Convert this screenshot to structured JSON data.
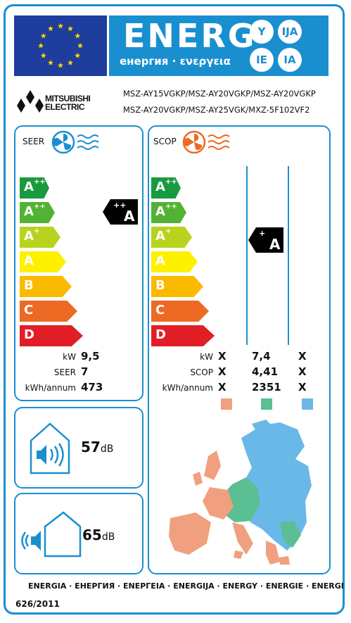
{
  "header": {
    "title": "ENERG",
    "subtitle": "енергия · ενεργεια",
    "languages": [
      "Y",
      "IJA",
      "IE",
      "IA"
    ],
    "brand": [
      "MITSUBISHI",
      "ELECTRIC"
    ]
  },
  "models": [
    "MSZ-AY15VGKP/MSZ-AY20VGKP/MSZ-AY20VGKP",
    "MSZ-AY20VGKP/MSZ-AY25VGK/MXZ-5F102VF2"
  ],
  "scale_classes": [
    "A+++",
    "A++",
    "A+",
    "A",
    "B",
    "C",
    "D"
  ],
  "scale_parts": [
    [
      "A",
      "+++"
    ],
    [
      "A",
      "++"
    ],
    [
      "A",
      "+"
    ],
    [
      "A",
      ""
    ],
    [
      "B",
      ""
    ],
    [
      "C",
      ""
    ],
    [
      "D",
      ""
    ]
  ],
  "colors": {
    "frame": "#1a8fd0",
    "eu_flag": "#1f3d9c",
    "star": "#ffd400",
    "scale": [
      "#1a9a3e",
      "#52b233",
      "#b9d21e",
      "#fff000",
      "#fbb900",
      "#ec6a23",
      "#e11e25"
    ],
    "zone_warm": "#f0a07f",
    "zone_average": "#5abf92",
    "zone_cold": "#6ab8e8"
  },
  "icons": {
    "cooling": "fan-cold-icon",
    "heating": "fan-warm-icon",
    "indoor_noise": "indoor-speaker-icon",
    "outdoor_noise": "outdoor-speaker-icon",
    "map": "europe-climate-map"
  },
  "seer": {
    "label": "SEER",
    "rating": {
      "letter": "A",
      "sup": "++"
    },
    "rows": [
      {
        "label": "kW",
        "value": "9,5"
      },
      {
        "label": "SEER",
        "value": "7"
      },
      {
        "label": "kWh/annum",
        "value": "473"
      }
    ]
  },
  "scop": {
    "label": "SCOP",
    "rating": {
      "letter": "A",
      "sup": "+"
    },
    "row_labels": [
      "kW",
      "SCOP",
      "kWh/annum"
    ],
    "warm": [
      "X",
      "X",
      "X"
    ],
    "average": [
      "7,4",
      "4,41",
      "2351"
    ],
    "cold": [
      "X",
      "X",
      "X"
    ]
  },
  "noise": {
    "indoor_value": "57",
    "outdoor_value": "65",
    "unit": "dB"
  },
  "footer": {
    "languages": "ENERGIA · ЕНЕРГИЯ · ΕΝΕΡΓΕΙΑ · ENERGIJA · ENERGY · ENERGIE · ENERGI",
    "regulation": "626/2011"
  }
}
